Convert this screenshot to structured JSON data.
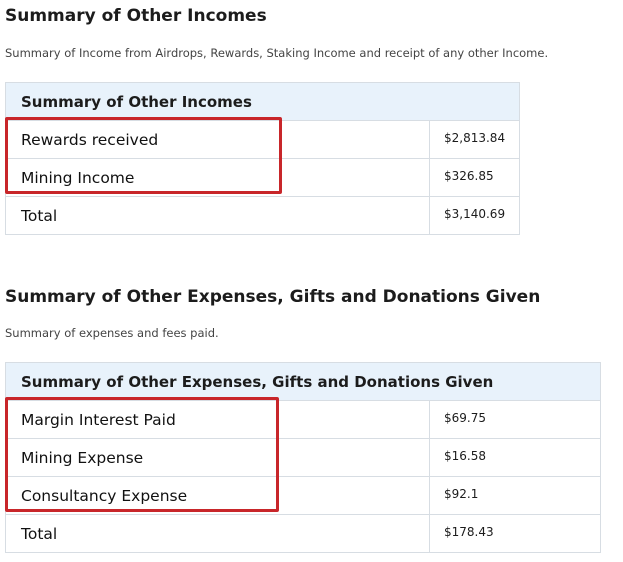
{
  "incomes": {
    "title": "Summary of Other Incomes",
    "description": "Summary of Income from Airdrops, Rewards, Staking Income and receipt of any other Income.",
    "table_header": "Summary of Other Incomes",
    "rows": [
      {
        "label": "Rewards received",
        "value": "$2,813.84"
      },
      {
        "label": "Mining Income",
        "value": "$326.85"
      }
    ],
    "total": {
      "label": "Total",
      "value": "$3,140.69"
    }
  },
  "expenses": {
    "title": "Summary of Other Expenses, Gifts and Donations Given",
    "description": "Summary of expenses and fees paid.",
    "table_header": "Summary of Other Expenses, Gifts and Donations Given",
    "rows": [
      {
        "label": "Margin Interest Paid",
        "value": "$69.75"
      },
      {
        "label": "Mining Expense",
        "value": "$16.58"
      },
      {
        "label": "Consultancy Expense",
        "value": "$92.1"
      }
    ],
    "total": {
      "label": "Total",
      "value": "$178.43"
    }
  },
  "colors": {
    "header_bg": "#e8f2fb",
    "highlight": "#c8262a",
    "border": "#d7dde3"
  }
}
